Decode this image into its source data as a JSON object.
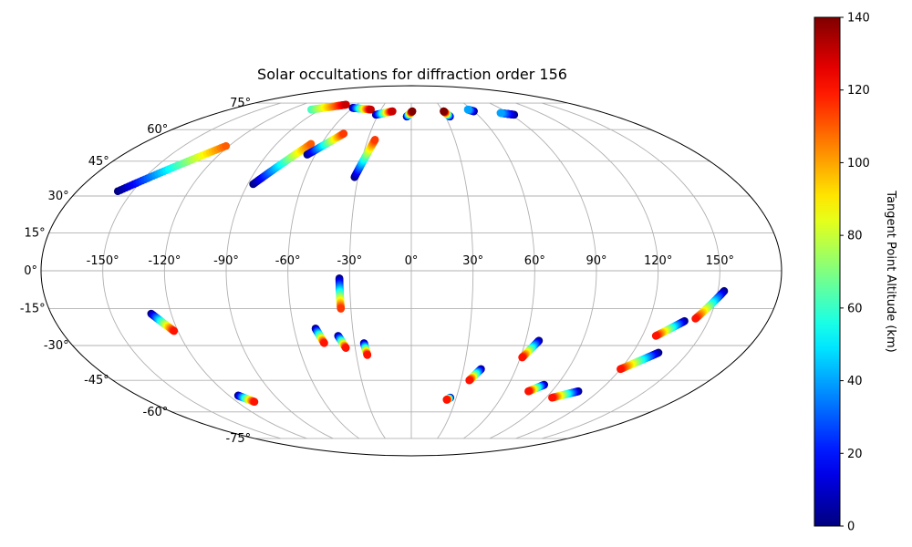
{
  "chart_data": {
    "type": "scatter",
    "projection": "mollweide",
    "title": "Solar occultations for diffraction order 156",
    "grid": true,
    "longitude_ticks": [
      "-150°",
      "-120°",
      "-90°",
      "-60°",
      "-30°",
      "0°",
      "30°",
      "60°",
      "90°",
      "120°",
      "150°"
    ],
    "latitude_ticks": [
      "75°",
      "60°",
      "45°",
      "30°",
      "15°",
      "0°",
      "-15°",
      "-30°",
      "-45°",
      "-60°",
      "-75°"
    ],
    "colorbar": {
      "label": "Tangent Point Altitude (km)",
      "colormap": "jet",
      "range": [
        0,
        140
      ],
      "ticks": [
        "0",
        "20",
        "40",
        "60",
        "80",
        "100",
        "120",
        "140"
      ]
    },
    "tracks": [
      {
        "lon_start": -158,
        "lat_start": 32,
        "lon_end": -122,
        "lat_end": 52,
        "alt_start": 0,
        "alt_end": 110
      },
      {
        "lon_start": -87,
        "lat_start": 35,
        "lon_end": -67,
        "lat_end": 53,
        "alt_start": 0,
        "alt_end": 110
      },
      {
        "lon_start": -65,
        "lat_start": 48,
        "lon_end": -49,
        "lat_end": 58,
        "alt_start": 0,
        "alt_end": 115
      },
      {
        "lon_start": -32,
        "lat_start": 38,
        "lon_end": -25,
        "lat_end": 55,
        "alt_start": 0,
        "alt_end": 115
      },
      {
        "lon_start": -60,
        "lat_start": 72,
        "lon_end": -40,
        "lat_end": 71,
        "alt_start": 0,
        "alt_end": 130
      },
      {
        "lon_start": -99,
        "lat_start": 71,
        "lon_end": -72,
        "lat_end": 74,
        "alt_start": 60,
        "alt_end": 130
      },
      {
        "lon_start": -32,
        "lat_start": 68,
        "lon_end": -18,
        "lat_end": 70,
        "alt_start": 0,
        "alt_end": 130
      },
      {
        "lon_start": -4,
        "lat_start": 67,
        "lon_end": 1,
        "lat_end": 70,
        "alt_start": 0,
        "alt_end": 140
      },
      {
        "lon_start": 34,
        "lat_start": 67,
        "lon_end": 31,
        "lat_end": 70,
        "alt_start": 0,
        "alt_end": 140
      },
      {
        "lon_start": 60,
        "lat_start": 70,
        "lon_end": 56,
        "lat_end": 71,
        "alt_start": 0,
        "alt_end": 40
      },
      {
        "lon_start": 93,
        "lat_start": 68,
        "lon_end": 83,
        "lat_end": 69,
        "alt_start": 0,
        "alt_end": 40
      },
      {
        "lon_start": -35,
        "lat_start": -3,
        "lon_end": -35,
        "lat_end": -15,
        "alt_start": 0,
        "alt_end": 115
      },
      {
        "lon_start": -130,
        "lat_start": -17,
        "lon_end": -122,
        "lat_end": -24,
        "alt_start": 0,
        "alt_end": 120
      },
      {
        "lon_start": -49,
        "lat_start": -23,
        "lon_end": -46,
        "lat_end": -29,
        "alt_start": 0,
        "alt_end": 120
      },
      {
        "lon_start": -38,
        "lat_start": -26,
        "lon_end": -35,
        "lat_end": -31,
        "alt_start": 0,
        "alt_end": 120
      },
      {
        "lon_start": -25,
        "lat_start": -29,
        "lon_end": -24,
        "lat_end": -34,
        "alt_start": 0,
        "alt_end": 120
      },
      {
        "lon_start": -114,
        "lat_start": -52,
        "lon_end": -108,
        "lat_end": -55,
        "alt_start": 0,
        "alt_end": 120
      },
      {
        "lon_start": 26,
        "lat_start": -53,
        "lon_end": 24,
        "lat_end": -54,
        "alt_start": 0,
        "alt_end": 120
      },
      {
        "lon_start": 40,
        "lat_start": -40,
        "lon_end": 35,
        "lat_end": -45,
        "alt_start": 0,
        "alt_end": 120
      },
      {
        "lon_start": 67,
        "lat_start": -28,
        "lon_end": 61,
        "lat_end": -35,
        "alt_start": 0,
        "alt_end": 120
      },
      {
        "lon_start": 82,
        "lat_start": -47,
        "lon_end": 75,
        "lat_end": -50,
        "alt_start": 0,
        "alt_end": 120
      },
      {
        "lon_start": 107,
        "lat_start": -50,
        "lon_end": 94,
        "lat_end": -53,
        "alt_start": 0,
        "alt_end": 120
      },
      {
        "lon_start": 134,
        "lat_start": -33,
        "lon_end": 120,
        "lat_end": -40,
        "alt_start": 0,
        "alt_end": 120
      },
      {
        "lon_start": 138,
        "lat_start": -20,
        "lon_end": 127,
        "lat_end": -26,
        "alt_start": 0,
        "alt_end": 120
      },
      {
        "lon_start": 153,
        "lat_start": -8,
        "lon_end": 143,
        "lat_end": -19,
        "alt_start": 0,
        "alt_end": 120
      }
    ]
  }
}
